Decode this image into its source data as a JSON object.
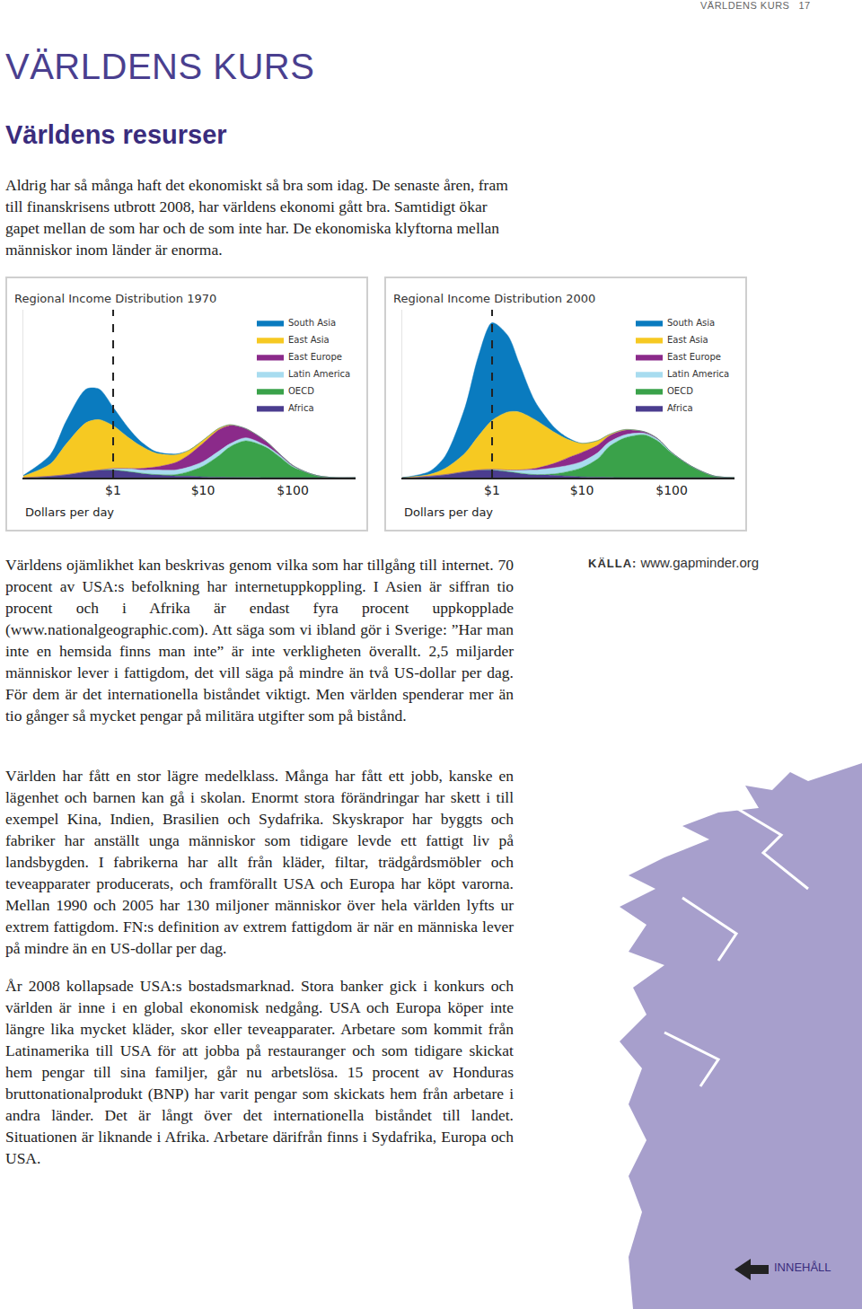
{
  "running_header": {
    "text": "VÄRLDENS KURS",
    "page": 17
  },
  "title": "VÄRLDENS KURS",
  "heading": "Världens resurser",
  "intro": "Aldrig har så många haft det ekonomiskt så bra som idag. De senaste åren, fram till finanskrisens utbrott 2008, har världens ekonomi gått bra. Samtidigt ökar gapet mellan de som har och de som inte har. De ekonomiska klyftorna mellan människor inom länder är enorma.",
  "chart_data": [
    {
      "type": "area",
      "title": "Regional Income Distribution 1970",
      "x_label": "Dollars per day",
      "log": "x",
      "stacked": true,
      "legend": "top right",
      "tick_labels": "x",
      "xlim": [
        0.1,
        500
      ],
      "ylim": [
        0,
        110
      ],
      "xticks": [
        {
          "value": 1,
          "label": "$1"
        },
        {
          "value": 10,
          "label": "$10"
        },
        {
          "value": 100,
          "label": "$100"
        }
      ],
      "reference_x": 1,
      "x": [
        0.1,
        0.2,
        0.3,
        0.5,
        0.7,
        1,
        1.5,
        2,
        3,
        5,
        7,
        10,
        15,
        20,
        30,
        50,
        70,
        100,
        150,
        200,
        300,
        500
      ],
      "series": [
        {
          "name": "Africa",
          "color": "#4b3d8f",
          "values": [
            0,
            1,
            2,
            4,
            5,
            5,
            4,
            3,
            2,
            1,
            1,
            0.5,
            0.3,
            0.2,
            0.1,
            0,
            0,
            0,
            0,
            0,
            0,
            0
          ]
        },
        {
          "name": "OECD",
          "color": "#3aa24a",
          "values": [
            0,
            0,
            0,
            0,
            0,
            0,
            0,
            0,
            0,
            1,
            3,
            7,
            14,
            20,
            24,
            20,
            14,
            7,
            3,
            1,
            0,
            0
          ]
        },
        {
          "name": "Latin America",
          "color": "#a8dcef",
          "values": [
            0,
            0,
            0,
            0,
            0,
            1,
            2,
            2,
            3,
            3,
            3,
            3,
            3,
            2,
            2,
            1,
            1,
            0.5,
            0,
            0,
            0,
            0
          ]
        },
        {
          "name": "East Europe",
          "color": "#8b2a8a",
          "values": [
            0,
            0,
            0,
            0,
            0,
            0,
            0,
            1,
            2,
            5,
            8,
            12,
            14,
            12,
            6,
            3,
            1,
            0.5,
            0,
            0,
            0,
            0
          ]
        },
        {
          "name": "East Asia",
          "color": "#f6c922",
          "values": [
            1,
            8,
            20,
            32,
            33,
            28,
            20,
            15,
            9,
            5,
            3,
            2,
            1,
            0.5,
            0,
            0,
            0,
            0,
            0,
            0,
            0,
            0
          ]
        },
        {
          "name": "South Asia",
          "color": "#0a7bbf",
          "values": [
            0.5,
            6,
            15,
            22,
            20,
            12,
            6,
            3,
            1,
            0.5,
            0,
            0,
            0,
            0,
            0,
            0,
            0,
            0,
            0,
            0,
            0,
            0
          ]
        }
      ]
    },
    {
      "type": "area",
      "title": "Regional Income Distribution 2000",
      "x_label": "Dollars per day",
      "log": "x",
      "stacked": true,
      "legend": "top right",
      "tick_labels": "x",
      "xlim": [
        0.1,
        500
      ],
      "ylim": [
        0,
        110
      ],
      "xticks": [
        {
          "value": 1,
          "label": "$1"
        },
        {
          "value": 10,
          "label": "$10"
        },
        {
          "value": 100,
          "label": "$100"
        }
      ],
      "reference_x": 1,
      "x": [
        0.1,
        0.2,
        0.3,
        0.5,
        0.7,
        1,
        1.5,
        2,
        3,
        5,
        7,
        10,
        15,
        20,
        30,
        50,
        70,
        100,
        150,
        200,
        300,
        500
      ],
      "series": [
        {
          "name": "Africa",
          "color": "#4b3d8f",
          "values": [
            0,
            1,
            2,
            4,
            5,
            5,
            4,
            3,
            2,
            1.5,
            1,
            0.5,
            0.3,
            0.2,
            0,
            0,
            0,
            0,
            0,
            0,
            0,
            0
          ]
        },
        {
          "name": "OECD",
          "color": "#3aa24a",
          "values": [
            0,
            0,
            0,
            0,
            0,
            0,
            0,
            0,
            0,
            1,
            3,
            6,
            12,
            20,
            26,
            28,
            24,
            16,
            9,
            5,
            1,
            0
          ]
        },
        {
          "name": "Latin America",
          "color": "#a8dcef",
          "values": [
            0,
            0,
            0,
            0,
            0,
            0.5,
            1,
            2,
            3,
            4,
            4,
            4,
            4,
            3,
            2,
            1,
            1,
            0.5,
            0,
            0,
            0,
            0
          ]
        },
        {
          "name": "East Europe",
          "color": "#8b2a8a",
          "values": [
            0,
            0,
            0,
            0,
            0,
            0,
            0,
            0,
            1,
            3,
            5,
            6,
            5,
            4,
            3,
            1,
            0.5,
            0,
            0,
            0,
            0,
            0
          ]
        },
        {
          "name": "East Asia",
          "color": "#f6c922",
          "values": [
            0,
            1,
            4,
            12,
            22,
            32,
            38,
            38,
            32,
            20,
            12,
            6,
            3,
            1,
            0.5,
            0,
            0,
            0,
            0,
            0,
            0,
            0
          ]
        },
        {
          "name": "South Asia",
          "color": "#0a7bbf",
          "values": [
            0,
            2,
            8,
            30,
            52,
            64,
            50,
            32,
            12,
            3,
            1,
            0,
            0,
            0,
            0,
            0,
            0,
            0,
            0,
            0,
            0,
            0
          ]
        }
      ]
    }
  ],
  "paragraphs": [
    "Världens ojämlikhet kan beskrivas genom vilka som har tillgång till internet. 70 procent av USA:s befolkning har internetuppkoppling. I Asien är siffran tio procent och i Afrika är endast fyra procent uppkopplade (www.nationalgeographic.com). Att säga som vi ibland gör i Sverige: ”Har man inte en hemsida finns man inte” är inte verkligheten överallt. 2,5 miljarder människor lever i fattigdom, det vill säga på mindre än två US-dollar per dag. För dem är det internationella biståndet viktigt. Men världen spenderar mer än tio gånger så mycket pengar på militära utgifter som på bistånd.",
    "Världen har fått en stor lägre medelklass. Många har fått ett jobb, kanske en lägenhet och barnen kan gå i skolan. Enormt stora förändringar har skett i till exempel Kina, Indien, Brasilien och Sydafrika. Skyskrapor har byggts och fabriker har anställt unga människor som tidigare levde ett fattigt liv på landsbygden. I fabrikerna har allt från kläder, filtar, trädgårdsmöbler och teveapparater producerats, och framförallt USA och Europa har köpt varorna. Mellan 1990 och 2005 har 130 miljoner människor över hela världen lyfts ur extrem fattigdom. FN:s definition av extrem fattigdom är när en människa lever på mindre än en US-dollar per dag.",
    "År 2008 kollapsade USA:s bostadsmarknad. Stora banker gick i konkurs och världen är inne i en global ekonomisk nedgång. USA och Europa köper inte längre lika mycket kläder, skor eller teveapparater. Arbetare som kommit från Latinamerika till USA för att jobba på restauranger och som tidigare skickat hem pengar till sina familjer, går nu arbetslösa. 15 procent av Honduras bruttonationalprodukt (BNP) har varit pengar som skickats hem från arbetare i andra länder. Det är långt över det internationella biståndet till landet. Situationen är liknande i Afrika. Arbetare därifrån finns i Sydafrika, Europa och USA."
  ],
  "source": {
    "label": "KÄLLA:",
    "text": "www.gapminder.org"
  },
  "nav": "INNEHÅLL"
}
